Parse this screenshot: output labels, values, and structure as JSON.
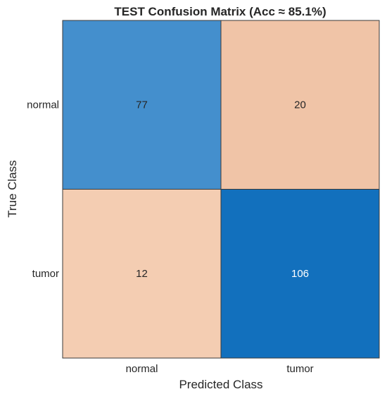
{
  "chart_data": {
    "type": "heatmap",
    "title": "TEST Confusion Matrix (Acc ≈ 85.1%)",
    "xlabel": "Predicted Class",
    "ylabel": "True Class",
    "x_categories": [
      "normal",
      "tumor"
    ],
    "y_categories": [
      "normal",
      "tumor"
    ],
    "values": [
      [
        77,
        20
      ],
      [
        12,
        106
      ]
    ],
    "cell_colors": [
      [
        "#448fcd",
        "#f0c4a7"
      ],
      [
        "#f4cdb2",
        "#1270bd"
      ]
    ],
    "cell_text_colors": [
      [
        "#262626",
        "#262626"
      ],
      [
        "#262626",
        "#ffffff"
      ]
    ],
    "grid": false
  }
}
